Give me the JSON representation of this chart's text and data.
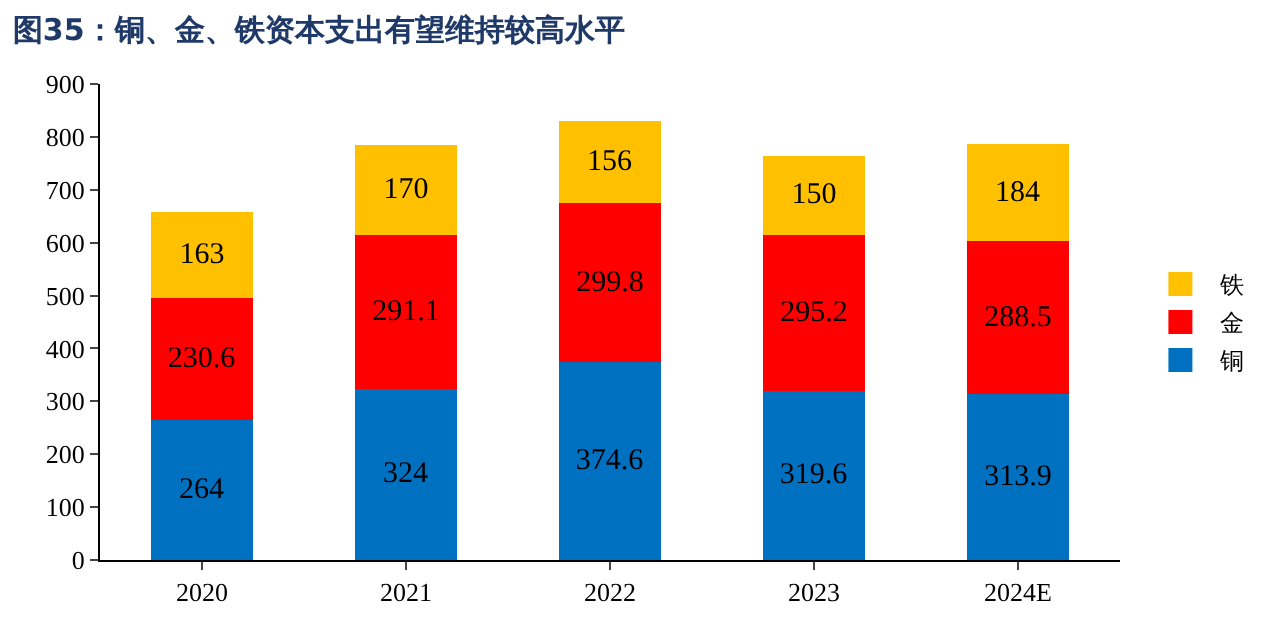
{
  "chart_data": {
    "type": "bar",
    "stacked": true,
    "title": "图35：铜、金、铁资本支出有望维持较高水平",
    "categories": [
      "2020",
      "2021",
      "2022",
      "2023",
      "2024E"
    ],
    "series": [
      {
        "name": "铜",
        "color": "#0070c0",
        "values": [
          264,
          324,
          374.6,
          319.6,
          313.9
        ]
      },
      {
        "name": "金",
        "color": "#ff0000",
        "values": [
          230.6,
          291.1,
          299.8,
          295.2,
          288.5
        ]
      },
      {
        "name": "铁",
        "color": "#ffc000",
        "values": [
          163,
          170,
          156,
          150,
          184
        ]
      }
    ],
    "ylim": [
      0,
      900
    ],
    "yticks": [
      0,
      100,
      200,
      300,
      400,
      500,
      600,
      700,
      800,
      900
    ],
    "grid": false,
    "legend": "right",
    "data_labels": true
  }
}
